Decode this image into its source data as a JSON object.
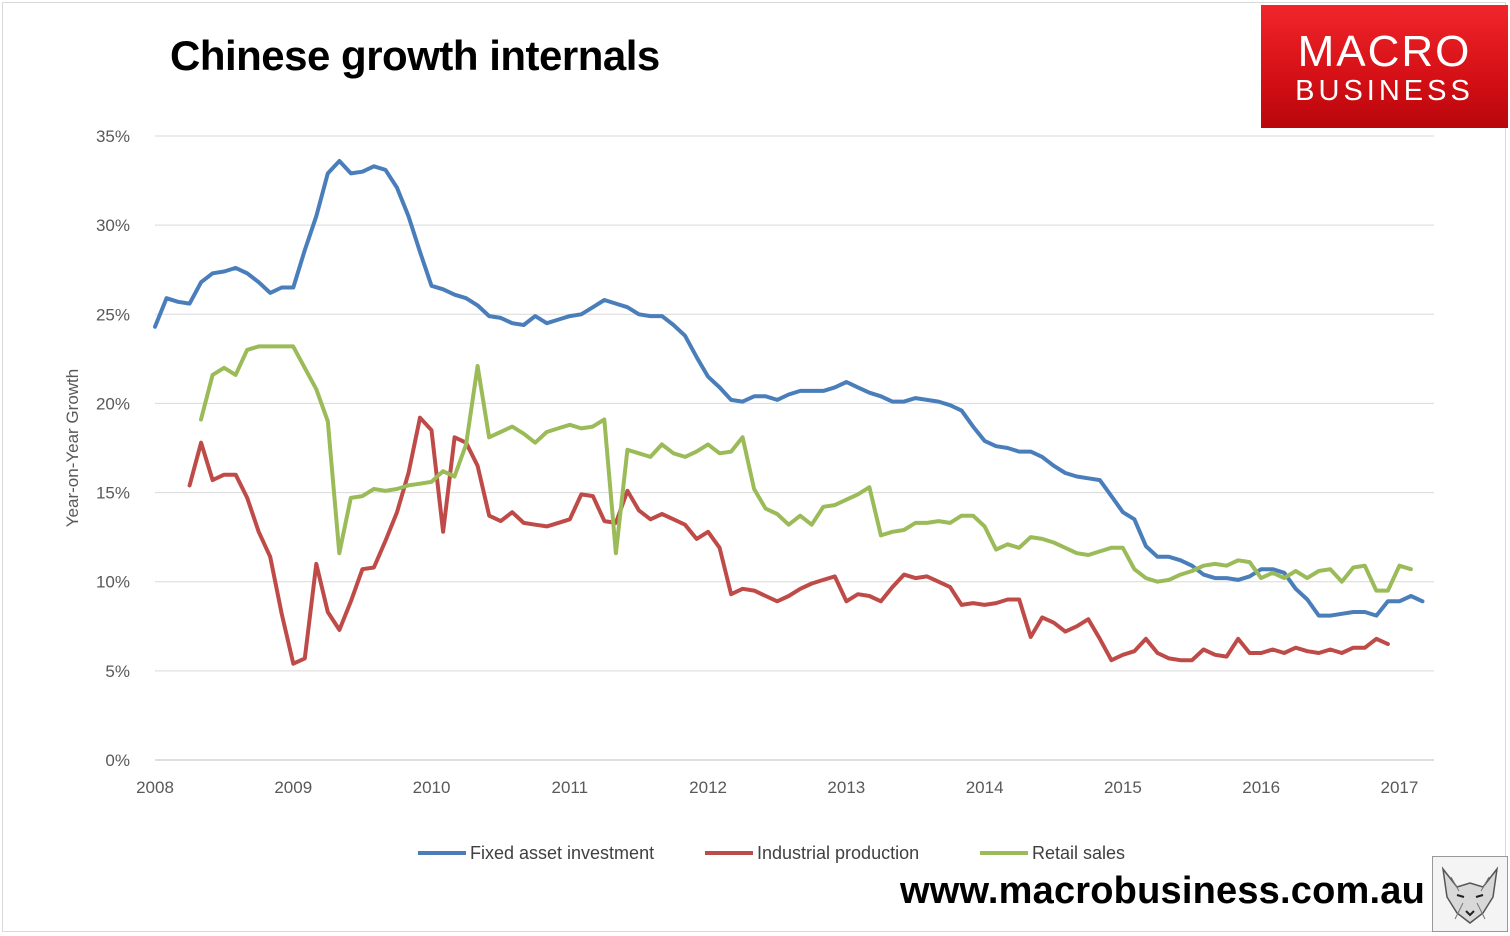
{
  "title": "Chinese growth internals",
  "logo": {
    "line1": "MACRO",
    "line2": "BUSINESS",
    "color": "#e0161c"
  },
  "website": "www.macrobusiness.com.au",
  "fox_icon": "fox-sketch-icon",
  "chart_data": {
    "type": "line",
    "title": "Chinese growth internals",
    "xlabel": "",
    "ylabel": "Year-on-Year Growth",
    "ylim": [
      0,
      35
    ],
    "yticks": [
      "0%",
      "5%",
      "10%",
      "15%",
      "20%",
      "25%",
      "30%",
      "35%"
    ],
    "xlim": [
      2008.0,
      2017.25
    ],
    "xticks": [
      "2008",
      "2009",
      "2010",
      "2011",
      "2012",
      "2013",
      "2014",
      "2015",
      "2016",
      "2017"
    ],
    "grid": true,
    "legend": "bottom",
    "series": [
      {
        "name": "Fixed asset investment",
        "color": "#4a7ebb",
        "start": 2008.0,
        "step_months": 1,
        "values": [
          24.3,
          25.9,
          25.7,
          25.6,
          26.8,
          27.3,
          27.4,
          27.6,
          27.3,
          26.8,
          26.2,
          26.5,
          26.5,
          28.6,
          30.5,
          32.9,
          33.6,
          32.9,
          33.0,
          33.3,
          33.1,
          32.1,
          30.5,
          28.5,
          26.6,
          26.4,
          26.1,
          25.9,
          25.5,
          24.9,
          24.8,
          24.5,
          24.4,
          24.9,
          24.5,
          24.7,
          24.9,
          25.0,
          25.4,
          25.8,
          25.6,
          25.4,
          25.0,
          24.9,
          24.9,
          24.4,
          23.8,
          22.6,
          21.5,
          20.9,
          20.2,
          20.1,
          20.4,
          20.4,
          20.2,
          20.5,
          20.7,
          20.7,
          20.7,
          20.9,
          21.2,
          20.9,
          20.6,
          20.4,
          20.1,
          20.1,
          20.3,
          20.2,
          20.1,
          19.9,
          19.6,
          18.7,
          17.9,
          17.6,
          17.5,
          17.3,
          17.3,
          17.0,
          16.5,
          16.1,
          15.9,
          15.8,
          15.7,
          14.8,
          13.9,
          13.5,
          12.0,
          11.4,
          11.4,
          11.2,
          10.9,
          10.4,
          10.2,
          10.2,
          10.1,
          10.3,
          10.7,
          10.7,
          10.5,
          9.6,
          9.0,
          8.1,
          8.1,
          8.2,
          8.3,
          8.3,
          8.1,
          8.9,
          8.9,
          9.2,
          8.9
        ]
      },
      {
        "name": "Industrial production",
        "color": "#be4b48",
        "start": 2008.25,
        "step_months": 1,
        "values": [
          15.4,
          17.8,
          15.7,
          16.0,
          16.0,
          14.7,
          12.8,
          11.4,
          8.2,
          5.4,
          5.7,
          11.0,
          8.3,
          7.3,
          8.9,
          10.7,
          10.8,
          12.3,
          13.9,
          16.1,
          19.2,
          18.5,
          12.8,
          18.1,
          17.8,
          16.5,
          13.7,
          13.4,
          13.9,
          13.3,
          13.2,
          13.1,
          13.3,
          13.5,
          14.9,
          14.8,
          13.4,
          13.3,
          15.1,
          14.0,
          13.5,
          13.8,
          13.5,
          13.2,
          12.4,
          12.8,
          11.9,
          9.3,
          9.6,
          9.5,
          9.2,
          8.9,
          9.2,
          9.6,
          9.9,
          10.1,
          10.3,
          8.9,
          9.3,
          9.2,
          8.9,
          9.7,
          10.4,
          10.2,
          10.3,
          10.0,
          9.7,
          8.7,
          8.8,
          8.7,
          8.8,
          9.0,
          9.0,
          6.9,
          8.0,
          7.7,
          7.2,
          7.5,
          7.9,
          6.8,
          5.6,
          5.9,
          6.1,
          6.8,
          6.0,
          5.7,
          5.6,
          5.6,
          6.2,
          5.9,
          5.8,
          6.8,
          6.0,
          6.0,
          6.2,
          6.0,
          6.3,
          6.1,
          6.0,
          6.2,
          6.0,
          6.3,
          6.3,
          6.8,
          6.5
        ]
      },
      {
        "name": "Retail sales",
        "color": "#9bbb59",
        "start": 2008.333,
        "step_months": 1,
        "values": [
          19.1,
          21.6,
          22.0,
          21.6,
          23.0,
          23.2,
          23.2,
          23.2,
          23.2,
          22.0,
          20.8,
          19.0,
          11.6,
          14.7,
          14.8,
          15.2,
          15.1,
          15.2,
          15.4,
          15.5,
          15.6,
          16.2,
          15.9,
          17.7,
          22.1,
          18.1,
          18.4,
          18.7,
          18.3,
          17.8,
          18.4,
          18.6,
          18.8,
          18.6,
          18.7,
          19.1,
          11.6,
          17.4,
          17.2,
          17.0,
          17.7,
          17.2,
          17.0,
          17.3,
          17.7,
          17.2,
          17.3,
          18.1,
          15.2,
          14.1,
          13.8,
          13.2,
          13.7,
          13.2,
          14.2,
          14.3,
          14.6,
          14.9,
          15.3,
          12.6,
          12.8,
          12.9,
          13.3,
          13.3,
          13.4,
          13.3,
          13.7,
          13.7,
          13.1,
          11.8,
          12.1,
          11.9,
          12.5,
          12.4,
          12.2,
          11.9,
          11.6,
          11.5,
          11.7,
          11.9,
          11.9,
          10.7,
          10.2,
          10.0,
          10.1,
          10.4,
          10.6,
          10.9,
          11.0,
          10.9,
          11.2,
          11.1,
          10.2,
          10.5,
          10.2,
          10.6,
          10.2,
          10.6,
          10.7,
          10.0,
          10.8,
          10.9,
          9.5,
          9.5,
          10.9,
          10.7
        ]
      }
    ]
  }
}
